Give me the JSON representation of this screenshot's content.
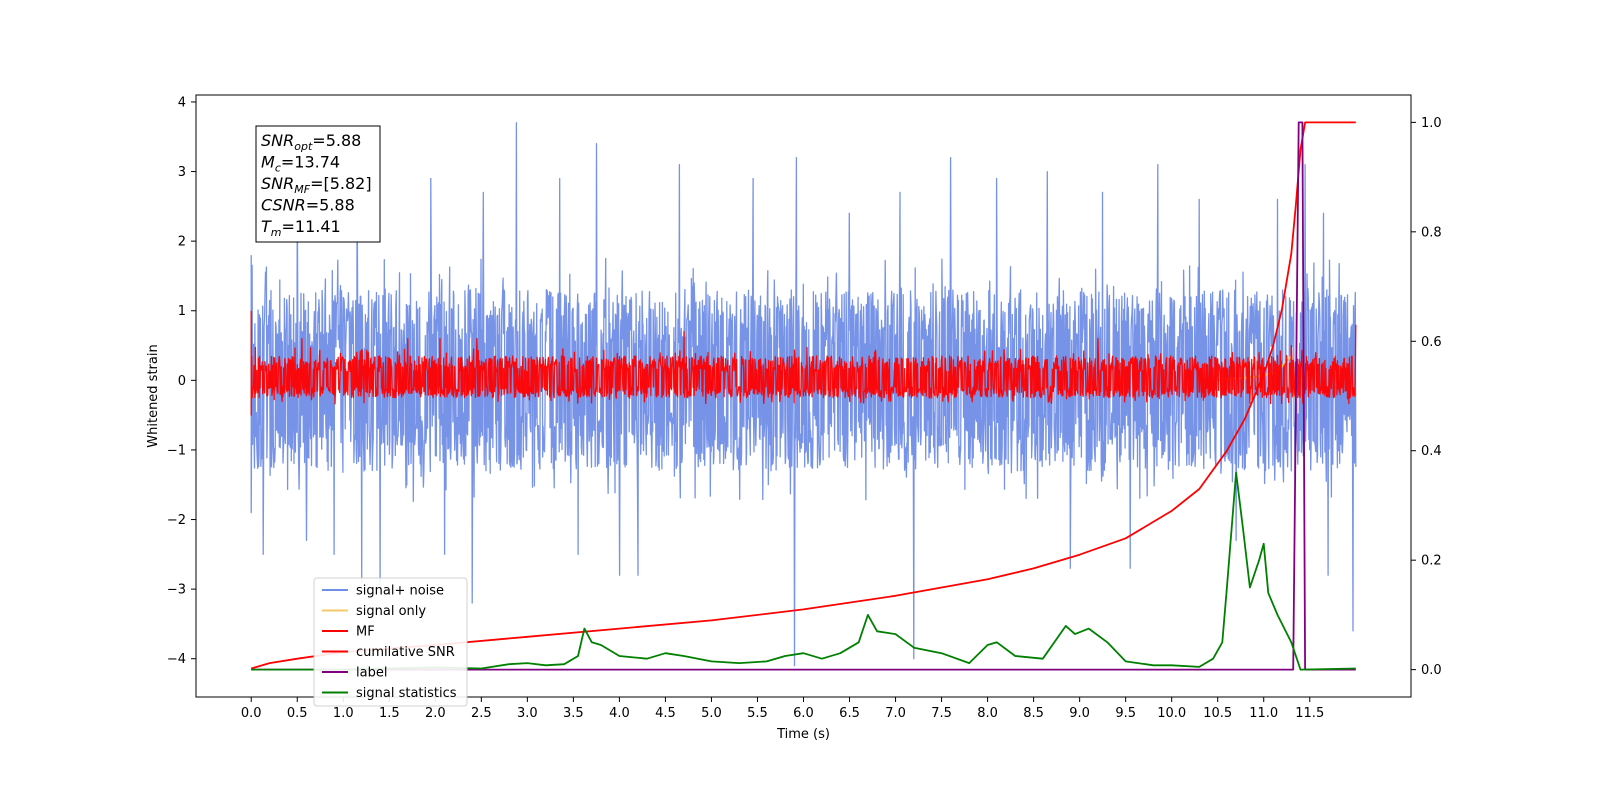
{
  "chart_data": {
    "type": "line",
    "title": "",
    "xlabel": "Time (s)",
    "ylabel": "Whitened strain",
    "ylabel_right": "",
    "xlim": [
      -0.6,
      12.6
    ],
    "ylim": [
      -4.55,
      4.1
    ],
    "ylim_right": [
      -0.05,
      1.05
    ],
    "x_ticks": [
      0.0,
      0.5,
      1.0,
      1.5,
      2.0,
      2.5,
      3.0,
      3.5,
      4.0,
      4.5,
      5.0,
      5.5,
      6.0,
      6.5,
      7.0,
      7.5,
      8.0,
      8.5,
      9.0,
      9.5,
      10.0,
      10.5,
      11.0,
      11.5
    ],
    "x_tick_labels": [
      "0.0",
      "0.5",
      "1.0",
      "1.5",
      "2.0",
      "2.5",
      "3.0",
      "3.5",
      "4.0",
      "4.5",
      "5.0",
      "5.5",
      "6.0",
      "6.5",
      "7.0",
      "7.5",
      "8.0",
      "8.5",
      "9.0",
      "9.5",
      "10.0",
      "10.5",
      "11.0",
      "11.5"
    ],
    "y_ticks": [
      -4,
      -3,
      -2,
      -1,
      0,
      1,
      2,
      3,
      4
    ],
    "y_tick_labels": [
      "−4",
      "−3",
      "−2",
      "−1",
      "0",
      "1",
      "2",
      "3",
      "4"
    ],
    "y_ticks_right": [
      0.0,
      0.2,
      0.4,
      0.6,
      0.8,
      1.0
    ],
    "y_tick_labels_right": [
      "0.0",
      "0.2",
      "0.4",
      "0.6",
      "0.8",
      "1.0"
    ],
    "legend_position": "lower-left",
    "grid": false,
    "annotation": {
      "lines": [
        {
          "sym": "SNR",
          "sub": "opt",
          "rest": "=5.88"
        },
        {
          "sym": "M",
          "sub": "c",
          "rest": "=13.74"
        },
        {
          "sym": "SNR",
          "sub": "MF",
          "rest": "=[5.82]"
        },
        {
          "sym": "CSNR",
          "sub": "",
          "rest": "=5.88"
        },
        {
          "sym": "T",
          "sub": "m",
          "rest": "=11.41"
        }
      ]
    },
    "series": [
      {
        "name": "signal+ noise",
        "color": "#6f8de6",
        "axis": "left",
        "kind": "noise",
        "x_range": [
          0.0,
          12.0
        ],
        "envelope_typical": [
          -1.3,
          1.3
        ],
        "spikes": [
          {
            "x": 0.0,
            "y": 1.8
          },
          {
            "x": 0.0,
            "y": -1.9
          },
          {
            "x": 0.13,
            "y": -2.5
          },
          {
            "x": 0.5,
            "y": 2.8
          },
          {
            "x": 0.6,
            "y": -2.3
          },
          {
            "x": 0.9,
            "y": -2.5
          },
          {
            "x": 1.15,
            "y": 3.1
          },
          {
            "x": 1.2,
            "y": -2.9
          },
          {
            "x": 1.4,
            "y": -3.0
          },
          {
            "x": 1.95,
            "y": 2.9
          },
          {
            "x": 2.1,
            "y": -2.5
          },
          {
            "x": 2.4,
            "y": -3.2
          },
          {
            "x": 2.52,
            "y": 2.7
          },
          {
            "x": 2.88,
            "y": 3.7
          },
          {
            "x": 3.35,
            "y": 2.9
          },
          {
            "x": 3.55,
            "y": -2.5
          },
          {
            "x": 3.75,
            "y": 3.4
          },
          {
            "x": 4.0,
            "y": -2.8
          },
          {
            "x": 4.2,
            "y": -2.8
          },
          {
            "x": 4.65,
            "y": 3.1
          },
          {
            "x": 5.45,
            "y": 2.9
          },
          {
            "x": 5.9,
            "y": -4.1
          },
          {
            "x": 5.92,
            "y": 3.2
          },
          {
            "x": 6.5,
            "y": 2.4
          },
          {
            "x": 7.05,
            "y": 2.7
          },
          {
            "x": 7.2,
            "y": -4.0
          },
          {
            "x": 7.6,
            "y": 3.2
          },
          {
            "x": 8.1,
            "y": 2.9
          },
          {
            "x": 8.65,
            "y": 3.0
          },
          {
            "x": 8.9,
            "y": -2.7
          },
          {
            "x": 9.25,
            "y": 2.7
          },
          {
            "x": 9.55,
            "y": -2.7
          },
          {
            "x": 9.85,
            "y": 3.1
          },
          {
            "x": 10.3,
            "y": 2.6
          },
          {
            "x": 10.7,
            "y": -2.3
          },
          {
            "x": 11.15,
            "y": 2.6
          },
          {
            "x": 11.45,
            "y": 3.1
          },
          {
            "x": 11.65,
            "y": 2.4
          },
          {
            "x": 11.7,
            "y": -2.8
          },
          {
            "x": 11.97,
            "y": -3.6
          }
        ]
      },
      {
        "name": "signal only",
        "color": "#f5c86a",
        "axis": "left",
        "kind": "line",
        "points": [
          [
            10.5,
            0.0
          ],
          [
            10.9,
            0.05
          ],
          [
            11.1,
            0.1
          ],
          [
            11.2,
            0.2
          ],
          [
            11.3,
            0.35
          ],
          [
            11.35,
            -0.3
          ],
          [
            11.38,
            0.15
          ],
          [
            11.4,
            0.0
          ]
        ]
      },
      {
        "name": "MF",
        "color": "#ff0000",
        "axis": "left",
        "kind": "noise",
        "x_range": [
          0.0,
          12.0
        ],
        "envelope_typical": [
          -0.25,
          0.35
        ],
        "spikes": [
          {
            "x": 0.0,
            "y": 1.0
          },
          {
            "x": 0.0,
            "y": -0.5
          },
          {
            "x": 0.55,
            "y": 0.6
          },
          {
            "x": 1.7,
            "y": 0.6
          },
          {
            "x": 2.05,
            "y": 0.6
          },
          {
            "x": 2.45,
            "y": 0.6
          },
          {
            "x": 4.7,
            "y": 0.7
          },
          {
            "x": 9.2,
            "y": 0.6
          },
          {
            "x": 11.3,
            "y": 0.5
          },
          {
            "x": 12.0,
            "y": 0.8
          }
        ]
      },
      {
        "name": "cumilative SNR",
        "color": "#ff0000",
        "axis": "right",
        "kind": "line",
        "points": [
          [
            0.0,
            0.002
          ],
          [
            0.2,
            0.012
          ],
          [
            0.5,
            0.02
          ],
          [
            1.0,
            0.032
          ],
          [
            2.0,
            0.045
          ],
          [
            3.0,
            0.06
          ],
          [
            4.0,
            0.075
          ],
          [
            5.0,
            0.09
          ],
          [
            6.0,
            0.11
          ],
          [
            7.0,
            0.135
          ],
          [
            7.5,
            0.15
          ],
          [
            8.0,
            0.165
          ],
          [
            8.5,
            0.185
          ],
          [
            9.0,
            0.21
          ],
          [
            9.5,
            0.24
          ],
          [
            10.0,
            0.29
          ],
          [
            10.3,
            0.33
          ],
          [
            10.6,
            0.4
          ],
          [
            10.8,
            0.46
          ],
          [
            11.0,
            0.54
          ],
          [
            11.1,
            0.59
          ],
          [
            11.2,
            0.66
          ],
          [
            11.3,
            0.76
          ],
          [
            11.35,
            0.85
          ],
          [
            11.4,
            0.95
          ],
          [
            11.45,
            1.0
          ],
          [
            12.0,
            1.0
          ]
        ]
      },
      {
        "name": "label",
        "color": "#800080",
        "axis": "right",
        "kind": "line",
        "points": [
          [
            0.0,
            0.0
          ],
          [
            11.32,
            0.0
          ],
          [
            11.38,
            1.0
          ],
          [
            11.42,
            1.0
          ],
          [
            11.45,
            0.0
          ],
          [
            12.0,
            0.0
          ]
        ]
      },
      {
        "name": "signal statistics",
        "color": "#008000",
        "axis": "right",
        "kind": "line",
        "points": [
          [
            0.0,
            0.0
          ],
          [
            1.0,
            0.0
          ],
          [
            2.0,
            0.004
          ],
          [
            2.5,
            0.002
          ],
          [
            2.8,
            0.01
          ],
          [
            3.0,
            0.012
          ],
          [
            3.2,
            0.008
          ],
          [
            3.4,
            0.01
          ],
          [
            3.55,
            0.025
          ],
          [
            3.62,
            0.075
          ],
          [
            3.7,
            0.05
          ],
          [
            3.8,
            0.045
          ],
          [
            3.9,
            0.035
          ],
          [
            4.0,
            0.025
          ],
          [
            4.3,
            0.02
          ],
          [
            4.5,
            0.03
          ],
          [
            4.7,
            0.025
          ],
          [
            5.0,
            0.015
          ],
          [
            5.3,
            0.012
          ],
          [
            5.6,
            0.015
          ],
          [
            5.8,
            0.025
          ],
          [
            6.0,
            0.03
          ],
          [
            6.2,
            0.02
          ],
          [
            6.4,
            0.03
          ],
          [
            6.6,
            0.05
          ],
          [
            6.7,
            0.1
          ],
          [
            6.8,
            0.07
          ],
          [
            7.0,
            0.065
          ],
          [
            7.2,
            0.04
          ],
          [
            7.5,
            0.03
          ],
          [
            7.8,
            0.012
          ],
          [
            8.0,
            0.045
          ],
          [
            8.1,
            0.05
          ],
          [
            8.3,
            0.025
          ],
          [
            8.6,
            0.02
          ],
          [
            8.85,
            0.08
          ],
          [
            8.95,
            0.065
          ],
          [
            9.1,
            0.075
          ],
          [
            9.3,
            0.05
          ],
          [
            9.5,
            0.015
          ],
          [
            9.8,
            0.008
          ],
          [
            10.0,
            0.008
          ],
          [
            10.3,
            0.005
          ],
          [
            10.45,
            0.02
          ],
          [
            10.55,
            0.05
          ],
          [
            10.6,
            0.15
          ],
          [
            10.7,
            0.36
          ],
          [
            10.78,
            0.25
          ],
          [
            10.85,
            0.15
          ],
          [
            10.95,
            0.2
          ],
          [
            11.0,
            0.23
          ],
          [
            11.05,
            0.14
          ],
          [
            11.15,
            0.1
          ],
          [
            11.3,
            0.05
          ],
          [
            11.4,
            0.0
          ],
          [
            12.0,
            0.002
          ]
        ]
      }
    ]
  }
}
